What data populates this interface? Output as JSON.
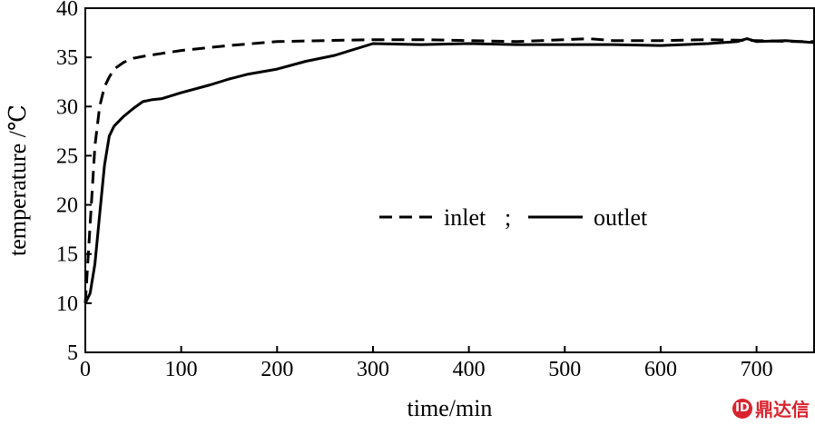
{
  "chart_data": {
    "type": "line",
    "xlabel": "time/min",
    "ylabel": "temperature /℃",
    "xlim": [
      0,
      760
    ],
    "ylim": [
      5,
      40
    ],
    "xticks": [
      0,
      100,
      200,
      300,
      400,
      500,
      600,
      700
    ],
    "yticks": [
      5,
      10,
      15,
      20,
      25,
      30,
      35,
      40
    ],
    "grid": false,
    "legend_position": "center-right",
    "legend_separator": ";",
    "series": [
      {
        "name": "inlet",
        "style": "dashed",
        "color": "#000000",
        "x": [
          0,
          5,
          10,
          15,
          20,
          25,
          30,
          40,
          50,
          60,
          80,
          100,
          150,
          200,
          250,
          300,
          350,
          400,
          450,
          500,
          525,
          550,
          600,
          650,
          700,
          740,
          760
        ],
        "y": [
          10,
          18,
          26,
          30,
          32,
          33,
          33.8,
          34.5,
          34.9,
          35.1,
          35.4,
          35.7,
          36.2,
          36.6,
          36.7,
          36.8,
          36.8,
          36.7,
          36.6,
          36.8,
          36.9,
          36.7,
          36.7,
          36.8,
          36.7,
          36.6,
          36.6
        ]
      },
      {
        "name": "outlet",
        "style": "solid",
        "color": "#000000",
        "x": [
          0,
          5,
          10,
          15,
          20,
          25,
          30,
          40,
          50,
          60,
          70,
          80,
          100,
          130,
          150,
          170,
          200,
          230,
          260,
          300,
          350,
          400,
          450,
          500,
          550,
          600,
          650,
          680,
          690,
          700,
          730,
          760
        ],
        "y": [
          10,
          11,
          14,
          19,
          24,
          27,
          28,
          29,
          29.8,
          30.5,
          30.7,
          30.8,
          31.4,
          32.2,
          32.8,
          33.3,
          33.8,
          34.6,
          35.2,
          36.4,
          36.3,
          36.4,
          36.3,
          36.3,
          36.3,
          36.2,
          36.4,
          36.6,
          36.9,
          36.6,
          36.7,
          36.5
        ]
      }
    ]
  },
  "watermark": {
    "logo_glyph": "ID",
    "text": "鼎达信"
  }
}
